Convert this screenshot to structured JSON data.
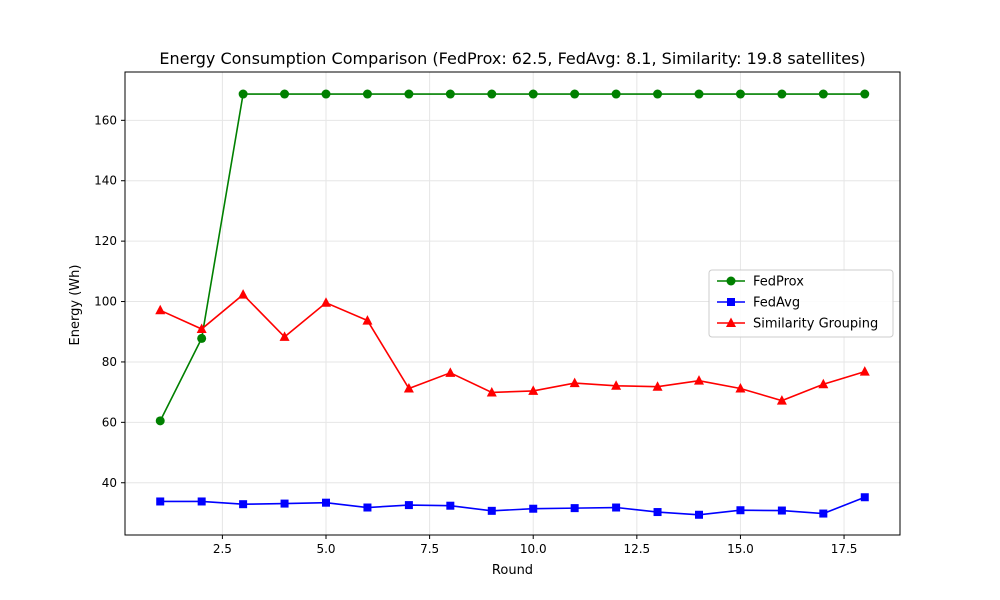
{
  "chart_data": {
    "type": "line",
    "title": "Energy Consumption Comparison (FedProx: 62.5, FedAvg: 8.1, Similarity: 19.8 satellites)",
    "xlabel": "Round",
    "ylabel": "Energy (Wh)",
    "xlim": [
      0.15,
      18.85
    ],
    "ylim": [
      22.7,
      176
    ],
    "xticks": [
      2.5,
      5.0,
      7.5,
      10.0,
      12.5,
      15.0,
      17.5
    ],
    "xtick_labels": [
      "2.5",
      "5.0",
      "7.5",
      "10.0",
      "12.5",
      "15.0",
      "17.5"
    ],
    "yticks": [
      40,
      60,
      80,
      100,
      120,
      140,
      160
    ],
    "ytick_labels": [
      "40",
      "60",
      "80",
      "100",
      "120",
      "140",
      "160"
    ],
    "grid": true,
    "legend_position": "center-right",
    "x": [
      1,
      2,
      3,
      4,
      5,
      6,
      7,
      8,
      9,
      10,
      11,
      12,
      13,
      14,
      15,
      16,
      17,
      18
    ],
    "series": [
      {
        "name": "FedProx",
        "color": "#008000",
        "marker": "circle",
        "values": [
          60.5,
          87.8,
          168.7,
          168.7,
          168.7,
          168.7,
          168.7,
          168.7,
          168.7,
          168.7,
          168.7,
          168.7,
          168.7,
          168.7,
          168.7,
          168.7,
          168.7,
          168.7
        ]
      },
      {
        "name": "FedAvg",
        "color": "#0000ff",
        "marker": "square",
        "values": [
          33.8,
          33.8,
          32.9,
          33.1,
          33.4,
          31.8,
          32.6,
          32.4,
          30.7,
          31.4,
          31.6,
          31.8,
          30.3,
          29.4,
          30.9,
          30.8,
          29.8,
          35.2
        ]
      },
      {
        "name": "Similarity Grouping",
        "color": "#ff0000",
        "marker": "triangle",
        "values": [
          97.1,
          90.9,
          102.3,
          88.3,
          99.6,
          93.7,
          71.2,
          76.4,
          69.9,
          70.4,
          73.0,
          72.1,
          71.8,
          73.8,
          71.2,
          67.2,
          72.6,
          76.8
        ]
      }
    ]
  }
}
